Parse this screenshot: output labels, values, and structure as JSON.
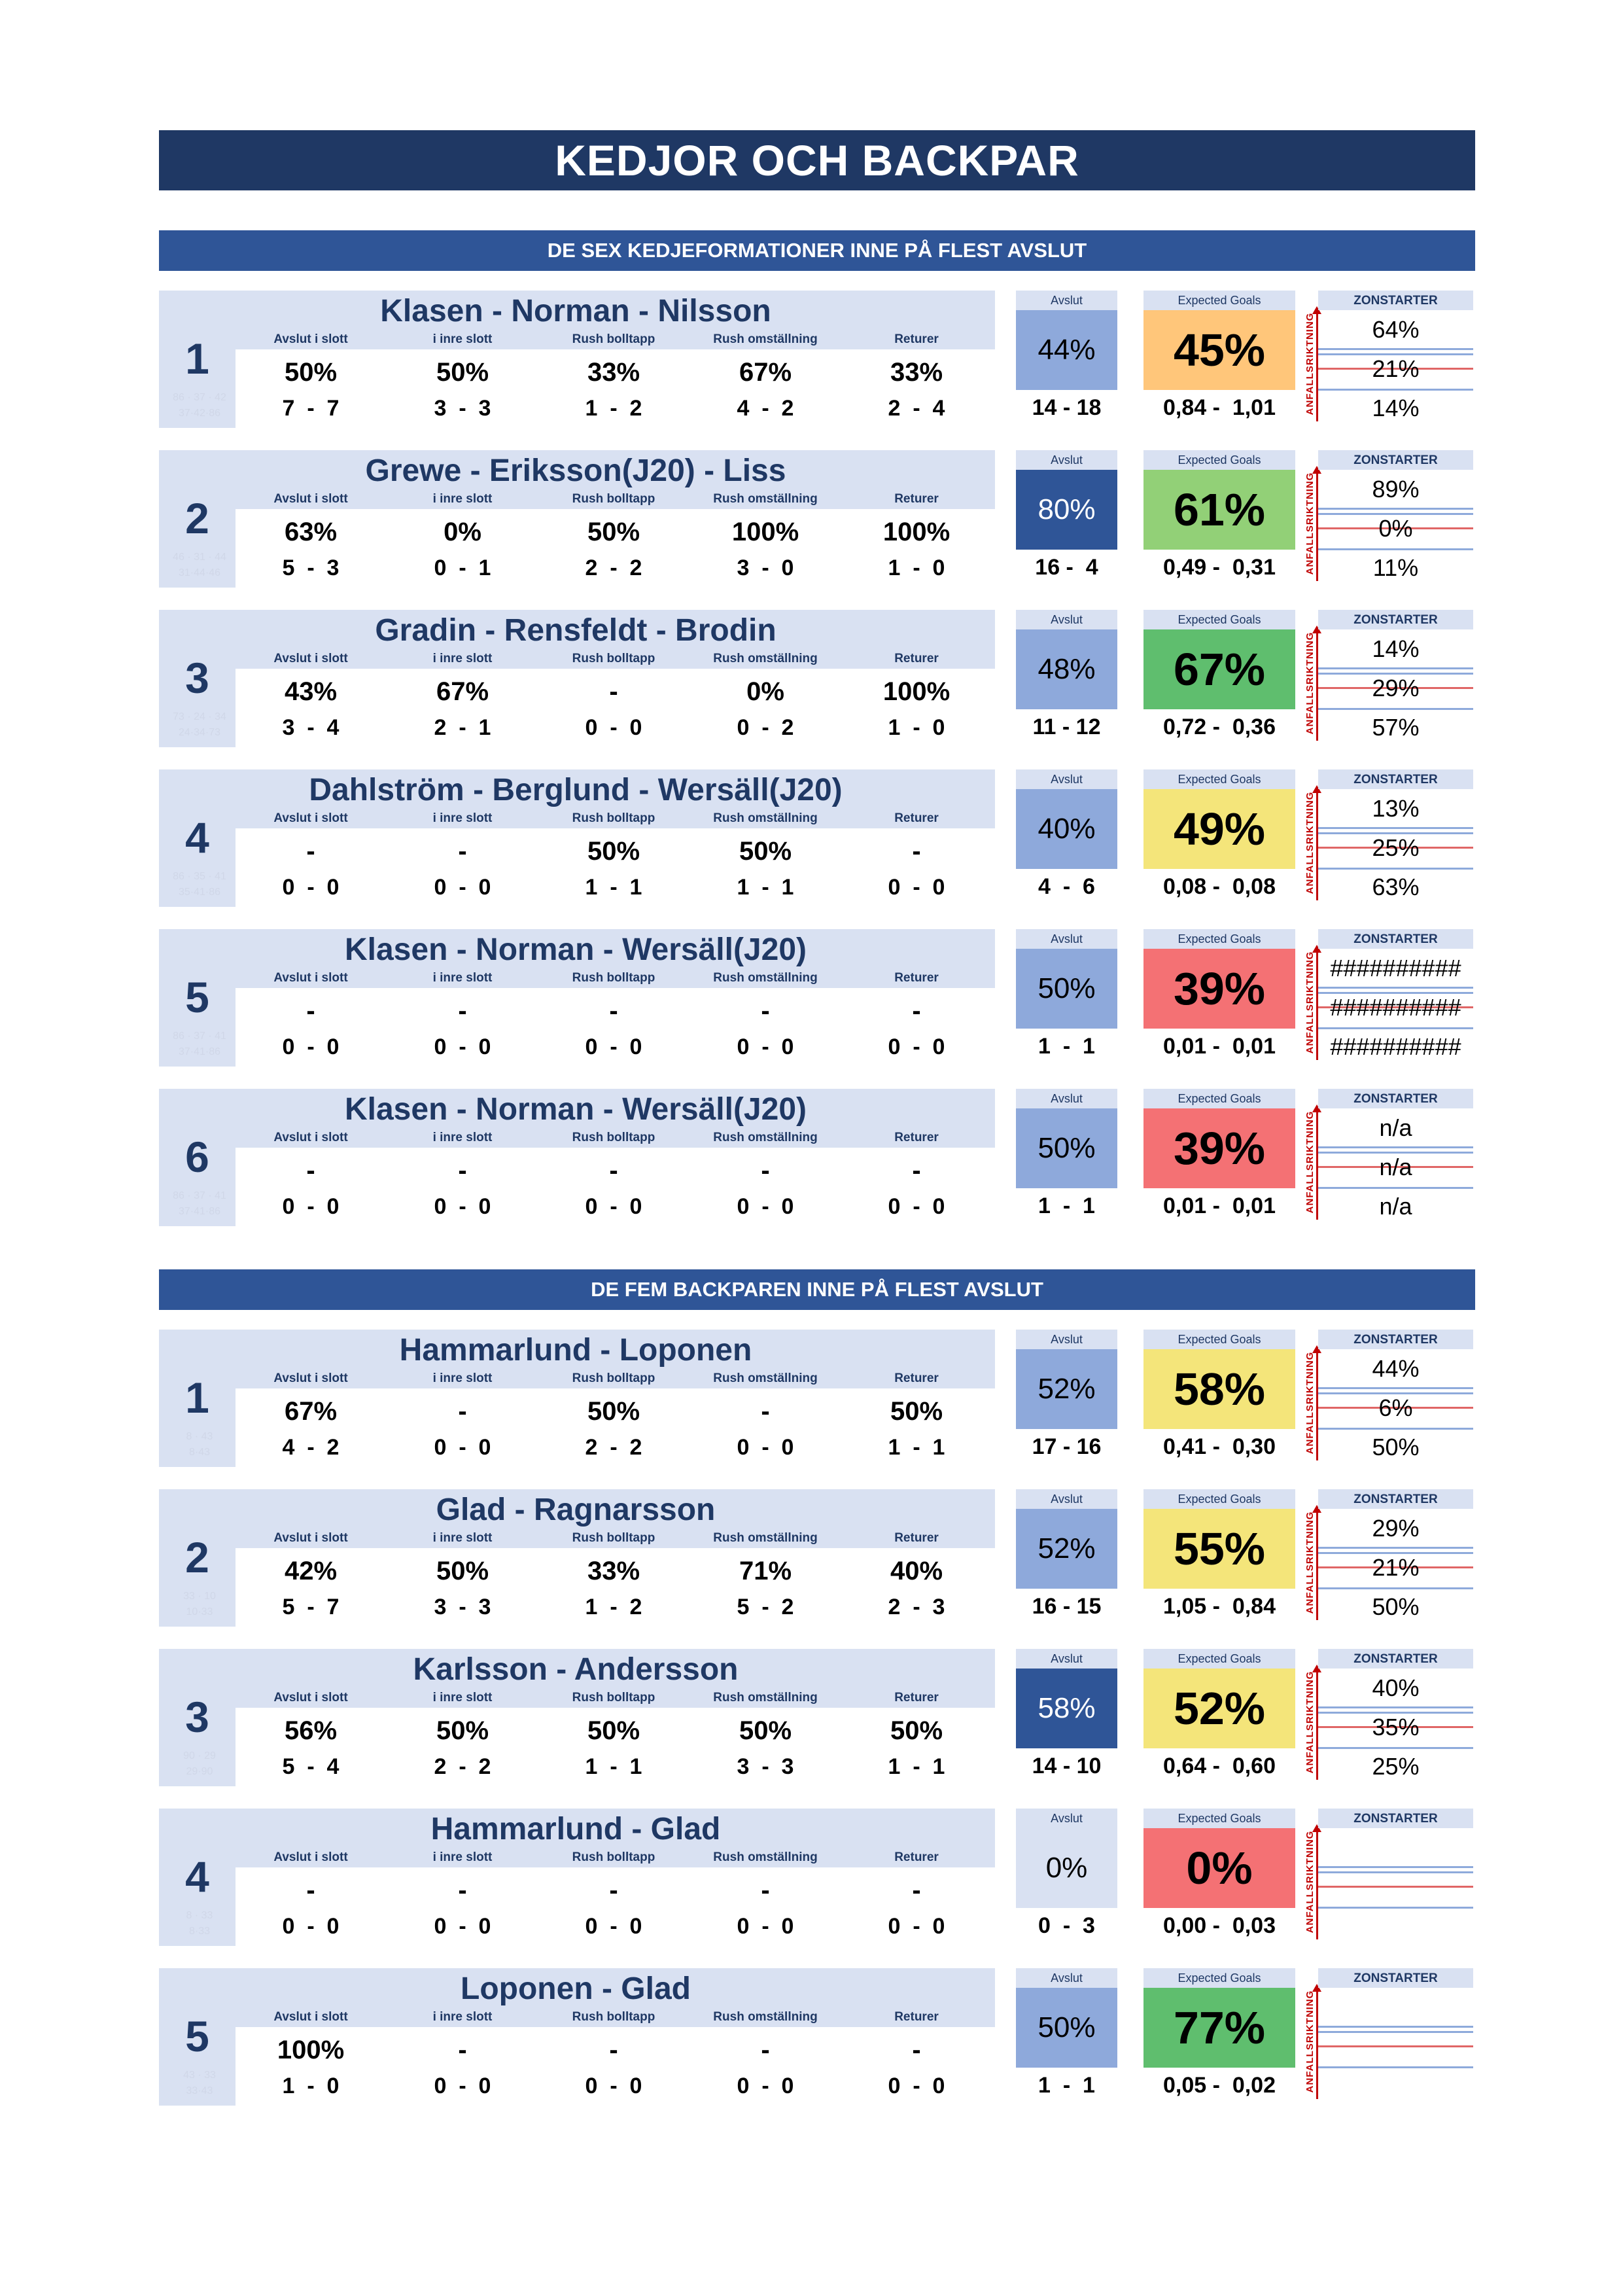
{
  "page": {
    "title": "KEDJOR OCH BACKPAR",
    "sections": [
      {
        "header": "DE SEX KEDJEFORMATIONER INNE PÅ FLEST AVSLUT"
      },
      {
        "header": "DE FEM BACKPAREN INNE PÅ FLEST AVSLUT"
      }
    ]
  },
  "labels": {
    "stats": [
      "Avslut i slott",
      "i inre slott",
      "Rush bolltapp",
      "Rush omställning",
      "Returer"
    ],
    "shots": "Avslut",
    "xg": "Expected Goals",
    "zon": "ZONSTARTER",
    "arrow": "ANFALLSRIKTNING"
  },
  "colors": {
    "header_dark": "#1f3864",
    "header_section": "#2f5597",
    "light_band": "#d9e1f2",
    "shots_light": "#8ea9db",
    "shots_dark": "#2f5597",
    "xg_orange": "#ffc67a",
    "xg_lightgreen": "#92d077",
    "xg_green": "#5fbe6e",
    "xg_yellow": "#f4e57a",
    "xg_red": "#f47174",
    "zon_blue_rule": "#8eaadb",
    "zon_red_rule": "#e06666"
  },
  "lines": [
    {
      "rank": "1",
      "name": "Klasen - Norman - Nilsson",
      "faint": [
        "86 · 37 · 42",
        "37·42·86"
      ],
      "stats": [
        [
          "50%",
          "7  -  7"
        ],
        [
          "50%",
          "3  -  3"
        ],
        [
          "33%",
          "1  -  2"
        ],
        [
          "67%",
          "4  -  2"
        ],
        [
          "33%",
          "2  -  4"
        ]
      ],
      "shots_pct": "44%",
      "shots_cnt": "14 - 18",
      "shots_color": "#8ea9db",
      "shots_text": "#000000",
      "xg_pct": "45%",
      "xg_cnt": "0,84 -  1,01",
      "xg_color": "#ffc67a",
      "zon": [
        "64%",
        "21%",
        "14%"
      ]
    },
    {
      "rank": "2",
      "name": "Grewe - Eriksson(J20) - Liss",
      "faint": [
        "46 · 31 · 44",
        "31·44·46"
      ],
      "stats": [
        [
          "63%",
          "5  -  3"
        ],
        [
          "0%",
          "0  -  1"
        ],
        [
          "50%",
          "2  -  2"
        ],
        [
          "100%",
          "3  -  0"
        ],
        [
          "100%",
          "1  -  0"
        ]
      ],
      "shots_pct": "80%",
      "shots_cnt": "16 -  4",
      "shots_color": "#2f5597",
      "shots_text": "#ffffff",
      "xg_pct": "61%",
      "xg_cnt": "0,49 -  0,31",
      "xg_color": "#92d077",
      "zon": [
        "89%",
        "0%",
        "11%"
      ]
    },
    {
      "rank": "3",
      "name": "Gradin - Rensfeldt - Brodin",
      "faint": [
        "73 · 24 · 34",
        "24·34·73"
      ],
      "stats": [
        [
          "43%",
          "3  -  4"
        ],
        [
          "67%",
          "2  -  1"
        ],
        [
          "-",
          "0  -  0"
        ],
        [
          "0%",
          "0  -  2"
        ],
        [
          "100%",
          "1  -  0"
        ]
      ],
      "shots_pct": "48%",
      "shots_cnt": "11 - 12",
      "shots_color": "#8ea9db",
      "shots_text": "#000000",
      "xg_pct": "67%",
      "xg_cnt": "0,72 -  0,36",
      "xg_color": "#5fbe6e",
      "zon": [
        "14%",
        "29%",
        "57%"
      ]
    },
    {
      "rank": "4",
      "name": "Dahlström - Berglund - Wersäll(J20)",
      "faint": [
        "86 · 35 · 41",
        "35·41·86"
      ],
      "stats": [
        [
          "-",
          "0  -  0"
        ],
        [
          "-",
          "0  -  0"
        ],
        [
          "50%",
          "1  -  1"
        ],
        [
          "50%",
          "1  -  1"
        ],
        [
          "-",
          "0  -  0"
        ]
      ],
      "shots_pct": "40%",
      "shots_cnt": "4  -  6",
      "shots_color": "#8ea9db",
      "shots_text": "#000000",
      "xg_pct": "49%",
      "xg_cnt": "0,08 -  0,08",
      "xg_color": "#f4e57a",
      "zon": [
        "13%",
        "25%",
        "63%"
      ]
    },
    {
      "rank": "5",
      "name": "Klasen - Norman - Wersäll(J20)",
      "faint": [
        "86 · 37 · 41",
        "37·41·86"
      ],
      "stats": [
        [
          "-",
          "0  -  0"
        ],
        [
          "-",
          "0  -  0"
        ],
        [
          "-",
          "0  -  0"
        ],
        [
          "-",
          "0  -  0"
        ],
        [
          "-",
          "0  -  0"
        ]
      ],
      "shots_pct": "50%",
      "shots_cnt": "1  -  1",
      "shots_color": "#8ea9db",
      "shots_text": "#000000",
      "xg_pct": "39%",
      "xg_cnt": "0,01 -  0,01",
      "xg_color": "#f47174",
      "zon": [
        "##########",
        "##########",
        "##########"
      ]
    },
    {
      "rank": "6",
      "name": "Klasen - Norman - Wersäll(J20)",
      "faint": [
        "86 · 37 · 41",
        "37·41·86"
      ],
      "stats": [
        [
          "-",
          "0  -  0"
        ],
        [
          "-",
          "0  -  0"
        ],
        [
          "-",
          "0  -  0"
        ],
        [
          "-",
          "0  -  0"
        ],
        [
          "-",
          "0  -  0"
        ]
      ],
      "shots_pct": "50%",
      "shots_cnt": "1  -  1",
      "shots_color": "#8ea9db",
      "shots_text": "#000000",
      "xg_pct": "39%",
      "xg_cnt": "0,01 -  0,01",
      "xg_color": "#f47174",
      "zon": [
        "n/a",
        "n/a",
        "n/a"
      ]
    }
  ],
  "pairs": [
    {
      "rank": "1",
      "name": "Hammarlund - Loponen",
      "faint": [
        "8 · 43",
        "8·43"
      ],
      "stats": [
        [
          "67%",
          "4  -  2"
        ],
        [
          "-",
          "0  -  0"
        ],
        [
          "50%",
          "2  -  2"
        ],
        [
          "-",
          "0  -  0"
        ],
        [
          "50%",
          "1  -  1"
        ]
      ],
      "shots_pct": "52%",
      "shots_cnt": "17 - 16",
      "shots_color": "#8ea9db",
      "shots_text": "#000000",
      "xg_pct": "58%",
      "xg_cnt": "0,41 -  0,30",
      "xg_color": "#f4e57a",
      "zon": [
        "44%",
        "6%",
        "50%"
      ]
    },
    {
      "rank": "2",
      "name": "Glad - Ragnarsson",
      "faint": [
        "33 · 10",
        "10·33"
      ],
      "stats": [
        [
          "42%",
          "5  -  7"
        ],
        [
          "50%",
          "3  -  3"
        ],
        [
          "33%",
          "1  -  2"
        ],
        [
          "71%",
          "5  -  2"
        ],
        [
          "40%",
          "2  -  3"
        ]
      ],
      "shots_pct": "52%",
      "shots_cnt": "16 - 15",
      "shots_color": "#8ea9db",
      "shots_text": "#000000",
      "xg_pct": "55%",
      "xg_cnt": "1,05 -  0,84",
      "xg_color": "#f4e57a",
      "zon": [
        "29%",
        "21%",
        "50%"
      ]
    },
    {
      "rank": "3",
      "name": "Karlsson - Andersson",
      "faint": [
        "90 · 29",
        "29·90"
      ],
      "stats": [
        [
          "56%",
          "5  -  4"
        ],
        [
          "50%",
          "2  -  2"
        ],
        [
          "50%",
          "1  -  1"
        ],
        [
          "50%",
          "3  -  3"
        ],
        [
          "50%",
          "1  -  1"
        ]
      ],
      "shots_pct": "58%",
      "shots_cnt": "14 - 10",
      "shots_color": "#2f5597",
      "shots_text": "#ffffff",
      "xg_pct": "52%",
      "xg_cnt": "0,64 -  0,60",
      "xg_color": "#f4e57a",
      "zon": [
        "40%",
        "35%",
        "25%"
      ]
    },
    {
      "rank": "4",
      "name": "Hammarlund - Glad",
      "faint": [
        "8 · 33",
        "8·33"
      ],
      "stats": [
        [
          "-",
          "0  -  0"
        ],
        [
          "-",
          "0  -  0"
        ],
        [
          "-",
          "0  -  0"
        ],
        [
          "-",
          "0  -  0"
        ],
        [
          "-",
          "0  -  0"
        ]
      ],
      "shots_pct": "0%",
      "shots_cnt": "0  -  3",
      "shots_color": "#d9e1f2",
      "shots_text": "#000000",
      "xg_pct": "0%",
      "xg_cnt": "0,00 -  0,03",
      "xg_color": "#f47174",
      "zon": [
        "",
        "",
        ""
      ]
    },
    {
      "rank": "5",
      "name": "Loponen - Glad",
      "faint": [
        "43 · 33",
        "33·43"
      ],
      "stats": [
        [
          "100%",
          "1  -  0"
        ],
        [
          "-",
          "0  -  0"
        ],
        [
          "-",
          "0  -  0"
        ],
        [
          "-",
          "0  -  0"
        ],
        [
          "-",
          "0  -  0"
        ]
      ],
      "shots_pct": "50%",
      "shots_cnt": "1  -  1",
      "shots_color": "#8ea9db",
      "shots_text": "#000000",
      "xg_pct": "77%",
      "xg_cnt": "0,05 -  0,02",
      "xg_color": "#5fbe6e",
      "zon": [
        "",
        "",
        ""
      ]
    }
  ]
}
